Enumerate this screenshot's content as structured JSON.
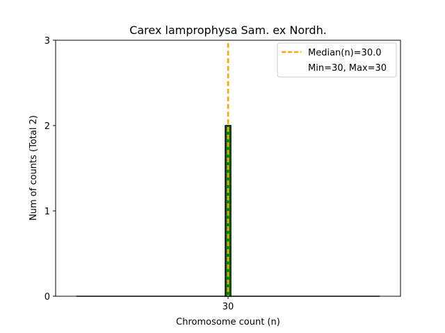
{
  "chart_data": {
    "type": "bar",
    "title": "Carex lamprophysa Sam. ex Nordh.",
    "xlabel": "Chromosome count (n)",
    "ylabel": "Num of counts     (Total 2)",
    "x_ticks": [
      "30"
    ],
    "y_ticks": [
      "0",
      "1",
      "2",
      "3"
    ],
    "ylim": [
      0,
      3
    ],
    "xlim": [
      25,
      35
    ],
    "bars": [
      {
        "x": 30,
        "value": 2
      }
    ],
    "median": 30.0,
    "legend": {
      "position": "top-right",
      "entries": [
        "Median(n)=30.0",
        "Min=30, Max=30"
      ]
    },
    "colors": {
      "bar_fill": "#008000",
      "bar_edge": "#000000",
      "median_line": "#FFA500"
    }
  }
}
